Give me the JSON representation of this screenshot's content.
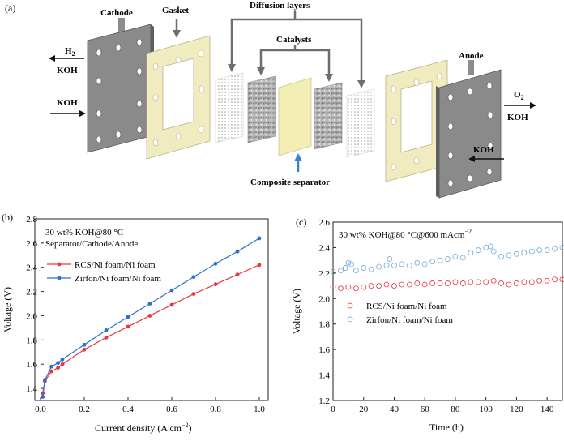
{
  "panel_a": {
    "label": "(a)",
    "cathode": "Cathode",
    "gasket": "Gasket",
    "diffusion_layers": "Diffusion layers",
    "catalysts": "Catalysts",
    "anode": "Anode",
    "composite_separator": "Composite separator",
    "h2_base": "H",
    "h2_sub": "2",
    "o2_base": "O",
    "o2_sub": "2",
    "koh": "KOH"
  },
  "chart_data": [
    {
      "type": "line",
      "panel_label": "(b)",
      "annotation_lines": [
        "30 wt% KOH@80 °C",
        "Separator/Cathode/Anode"
      ],
      "xlabel_text": "Current density (A cm",
      "xlabel_sup": "−2",
      "xlabel_end": ")",
      "ylabel": "Voltage (V)",
      "xlim": [
        0,
        1.0
      ],
      "ylim": [
        1.3,
        2.8
      ],
      "xticks": [
        "0.0",
        "0.2",
        "0.4",
        "0.6",
        "0.8",
        "1.0"
      ],
      "yticks": [
        "1.4",
        "1.6",
        "1.8",
        "2.0",
        "2.2",
        "2.4",
        "2.6",
        "2.8"
      ],
      "legend_position": "upper-left",
      "series": [
        {
          "name": "RCS/Ni foam/Ni foam",
          "color": "#e8383d",
          "x": [
            0.01,
            0.02,
            0.05,
            0.08,
            0.1,
            0.2,
            0.3,
            0.4,
            0.5,
            0.6,
            0.7,
            0.8,
            0.9,
            1.0
          ],
          "y": [
            1.36,
            1.46,
            1.54,
            1.57,
            1.6,
            1.72,
            1.82,
            1.91,
            2.0,
            2.09,
            2.18,
            2.26,
            2.34,
            2.42
          ]
        },
        {
          "name": "Zirfon/Ni foam/Ni foam",
          "color": "#2f6fd0",
          "x": [
            0.01,
            0.02,
            0.05,
            0.08,
            0.1,
            0.2,
            0.3,
            0.4,
            0.5,
            0.6,
            0.7,
            0.8,
            0.9,
            1.0
          ],
          "y": [
            1.33,
            1.47,
            1.58,
            1.61,
            1.64,
            1.76,
            1.88,
            1.99,
            2.1,
            2.21,
            2.32,
            2.43,
            2.53,
            2.64
          ]
        }
      ]
    },
    {
      "type": "scatter",
      "panel_label": "(c)",
      "annotation_text": "30 wt% KOH@80 °C@600 mAcm",
      "annotation_sup": "−2",
      "xlabel": "Time (h)",
      "ylabel": "Voltage (V)",
      "xlim": [
        0,
        150
      ],
      "ylim": [
        1.2,
        2.6
      ],
      "xticks": [
        "0",
        "20",
        "40",
        "60",
        "80",
        "100",
        "120",
        "140"
      ],
      "yticks": [
        "1.2",
        "1.4",
        "1.6",
        "1.8",
        "2.0",
        "2.2",
        "2.4",
        "2.6"
      ],
      "legend_position": "center-left",
      "series": [
        {
          "name": "RCS/Ni foam/Ni foam",
          "color": "#e8383d",
          "x": [
            0,
            5,
            10,
            15,
            20,
            25,
            30,
            35,
            40,
            45,
            50,
            55,
            60,
            65,
            70,
            75,
            80,
            85,
            90,
            95,
            100,
            105,
            110,
            115,
            120,
            125,
            130,
            135,
            140,
            145,
            150
          ],
          "y": [
            2.09,
            2.08,
            2.09,
            2.08,
            2.09,
            2.1,
            2.1,
            2.11,
            2.1,
            2.11,
            2.11,
            2.12,
            2.11,
            2.12,
            2.12,
            2.12,
            2.13,
            2.12,
            2.13,
            2.13,
            2.13,
            2.14,
            2.12,
            2.11,
            2.12,
            2.13,
            2.13,
            2.14,
            2.14,
            2.15,
            2.15
          ]
        },
        {
          "name": "Zirfon/Ni foam/Ni foam",
          "color": "#6fa8dc",
          "x": [
            0,
            5,
            8,
            10,
            12,
            15,
            20,
            25,
            30,
            35,
            37,
            40,
            45,
            50,
            55,
            60,
            65,
            70,
            75,
            80,
            85,
            90,
            95,
            100,
            103,
            105,
            110,
            115,
            120,
            125,
            130,
            135,
            140,
            145,
            150
          ],
          "y": [
            2.21,
            2.22,
            2.24,
            2.28,
            2.27,
            2.22,
            2.24,
            2.23,
            2.25,
            2.26,
            2.31,
            2.26,
            2.27,
            2.26,
            2.28,
            2.27,
            2.29,
            2.3,
            2.31,
            2.33,
            2.32,
            2.36,
            2.38,
            2.4,
            2.41,
            2.37,
            2.33,
            2.34,
            2.35,
            2.36,
            2.37,
            2.38,
            2.38,
            2.39,
            2.4
          ]
        }
      ]
    }
  ]
}
